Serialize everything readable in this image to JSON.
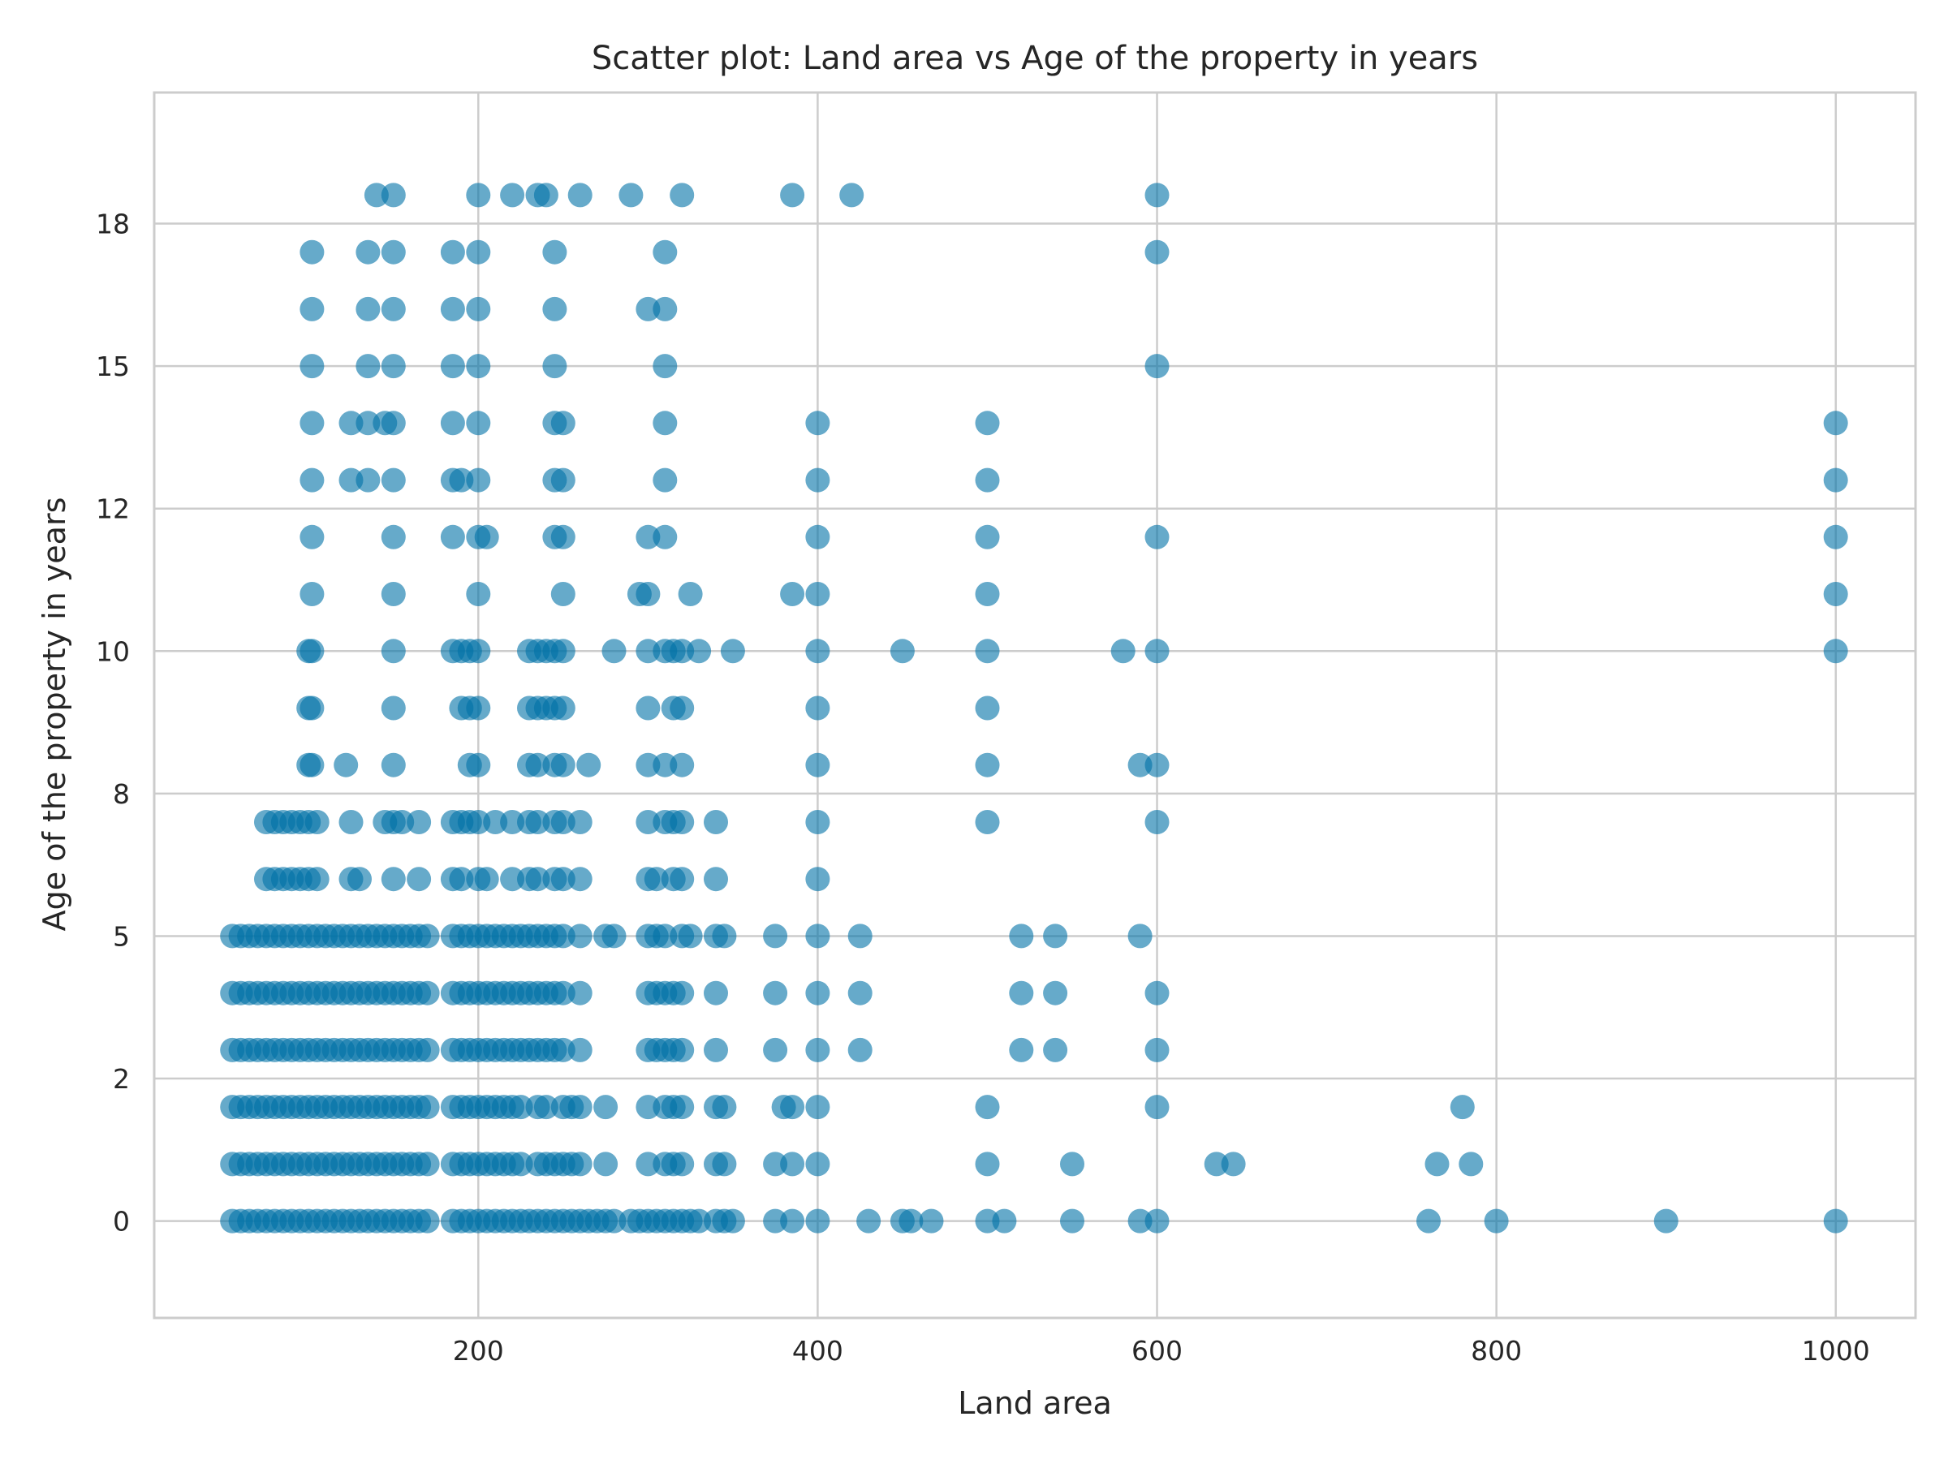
{
  "chart_data": {
    "type": "scatter",
    "title": "Scatter plot: Land area vs Age of the property in years",
    "xlabel": "Land area",
    "ylabel": "Age of the property in years",
    "xlim": [
      9,
      1047
    ],
    "ylim": [
      -1.7,
      19.8
    ],
    "x_ticks": [
      200,
      400,
      600,
      800,
      1000
    ],
    "x_tick_labels": [
      "200",
      "400",
      "600",
      "800",
      "1000"
    ],
    "y_ticks": [
      0,
      2.5,
      5,
      7.5,
      10,
      12.5,
      15,
      17.5
    ],
    "y_tick_labels": [
      "0",
      "2",
      "5",
      "8",
      "10",
      "12",
      "15",
      "18"
    ],
    "grid": true,
    "legend": "none",
    "colors": {
      "marker": "#0072a6",
      "grid": "#cccccc",
      "frame": "#cccccc",
      "text": "#262626"
    },
    "series": [
      {
        "rows": [
          {
            "y": 0,
            "x": [
              55,
              60,
              65,
              70,
              75,
              80,
              85,
              90,
              95,
              100,
              105,
              110,
              115,
              120,
              125,
              130,
              135,
              140,
              145,
              150,
              155,
              160,
              165,
              170,
              185,
              190,
              195,
              200,
              205,
              210,
              215,
              220,
              225,
              230,
              235,
              240,
              245,
              250,
              255,
              260,
              265,
              270,
              275,
              280,
              290,
              295,
              300,
              305,
              310,
              315,
              320,
              325,
              330,
              340,
              345,
              350,
              375,
              385,
              400,
              430,
              450,
              455,
              467,
              500,
              510,
              550,
              590,
              600,
              760,
              800,
              900,
              1000
            ]
          },
          {
            "y": 1,
            "x": [
              55,
              60,
              65,
              70,
              75,
              80,
              85,
              90,
              95,
              100,
              105,
              110,
              115,
              120,
              125,
              130,
              135,
              140,
              145,
              150,
              155,
              160,
              165,
              170,
              185,
              190,
              195,
              200,
              205,
              210,
              215,
              220,
              225,
              235,
              240,
              245,
              250,
              255,
              260,
              275,
              300,
              310,
              315,
              320,
              340,
              345,
              375,
              385,
              400,
              500,
              550,
              635,
              645,
              765,
              785
            ]
          },
          {
            "y": 2,
            "x": [
              55,
              60,
              65,
              70,
              75,
              80,
              85,
              90,
              95,
              100,
              105,
              110,
              115,
              120,
              125,
              130,
              135,
              140,
              145,
              150,
              155,
              160,
              165,
              170,
              185,
              190,
              195,
              200,
              205,
              210,
              215,
              220,
              225,
              235,
              240,
              250,
              255,
              260,
              275,
              300,
              310,
              315,
              320,
              340,
              345,
              380,
              385,
              400,
              500,
              600,
              780
            ]
          },
          {
            "y": 3,
            "x": [
              55,
              60,
              65,
              70,
              75,
              80,
              85,
              90,
              95,
              100,
              105,
              110,
              115,
              120,
              125,
              130,
              135,
              140,
              145,
              150,
              155,
              160,
              165,
              170,
              185,
              190,
              195,
              200,
              205,
              210,
              215,
              220,
              225,
              230,
              235,
              240,
              245,
              250,
              260,
              300,
              305,
              310,
              315,
              320,
              340,
              375,
              400,
              425,
              520,
              540,
              600
            ]
          },
          {
            "y": 4,
            "x": [
              55,
              60,
              65,
              70,
              75,
              80,
              85,
              90,
              95,
              100,
              105,
              110,
              115,
              120,
              125,
              130,
              135,
              140,
              145,
              150,
              155,
              160,
              165,
              170,
              185,
              190,
              195,
              200,
              205,
              210,
              215,
              220,
              225,
              230,
              235,
              240,
              245,
              250,
              260,
              300,
              305,
              310,
              315,
              320,
              340,
              375,
              400,
              425,
              520,
              540,
              600
            ]
          },
          {
            "y": 5,
            "x": [
              55,
              60,
              65,
              70,
              75,
              80,
              85,
              90,
              95,
              100,
              105,
              110,
              115,
              120,
              125,
              130,
              135,
              140,
              145,
              150,
              155,
              160,
              165,
              170,
              185,
              190,
              195,
              200,
              205,
              210,
              215,
              220,
              225,
              230,
              235,
              240,
              245,
              250,
              260,
              275,
              280,
              300,
              305,
              310,
              320,
              325,
              340,
              345,
              375,
              400,
              425,
              520,
              540,
              590
            ]
          },
          {
            "y": 6,
            "x": [
              75,
              80,
              85,
              90,
              95,
              100,
              105,
              125,
              130,
              150,
              165,
              185,
              190,
              200,
              205,
              220,
              230,
              235,
              245,
              250,
              260,
              300,
              305,
              315,
              320,
              340,
              400
            ]
          },
          {
            "y": 7,
            "x": [
              75,
              80,
              85,
              90,
              95,
              100,
              105,
              125,
              145,
              150,
              155,
              165,
              185,
              190,
              195,
              200,
              210,
              220,
              230,
              235,
              245,
              250,
              260,
              300,
              310,
              315,
              320,
              340,
              400,
              500,
              600
            ]
          },
          {
            "y": 8,
            "x": [
              100,
              102,
              122,
              150,
              195,
              200,
              230,
              235,
              245,
              250,
              265,
              300,
              310,
              320,
              400,
              500,
              590,
              600
            ]
          },
          {
            "y": 9,
            "x": [
              100,
              102,
              150,
              190,
              195,
              200,
              230,
              235,
              240,
              245,
              250,
              300,
              315,
              320,
              400,
              500
            ]
          },
          {
            "y": 10,
            "x": [
              100,
              102,
              150,
              185,
              190,
              195,
              200,
              230,
              235,
              240,
              245,
              250,
              280,
              300,
              310,
              315,
              320,
              330,
              350,
              400,
              450,
              500,
              580,
              600,
              1000
            ]
          },
          {
            "y": 11,
            "x": [
              102,
              150,
              200,
              250,
              295,
              300,
              325,
              385,
              400,
              500,
              1000
            ]
          },
          {
            "y": 12,
            "x": [
              102,
              150,
              185,
              200,
              205,
              245,
              250,
              300,
              310,
              400,
              500,
              600,
              1000
            ]
          },
          {
            "y": 13,
            "x": [
              102,
              125,
              135,
              150,
              185,
              190,
              200,
              245,
              250,
              310,
              400,
              500,
              1000
            ]
          },
          {
            "y": 14,
            "x": [
              102,
              125,
              135,
              145,
              150,
              185,
              200,
              245,
              250,
              310,
              400,
              500,
              1000
            ]
          },
          {
            "y": 15,
            "x": [
              102,
              135,
              150,
              185,
              200,
              245,
              310,
              600
            ]
          },
          {
            "y": 16,
            "x": [
              102,
              135,
              150,
              185,
              200,
              245,
              300,
              310
            ]
          },
          {
            "y": 17,
            "x": [
              102,
              135,
              150,
              185,
              200,
              245,
              310,
              600
            ]
          },
          {
            "y": 18,
            "x": [
              140,
              150,
              200,
              220,
              235,
              240,
              260,
              290,
              320,
              385,
              420,
              600
            ]
          }
        ]
      }
    ]
  }
}
